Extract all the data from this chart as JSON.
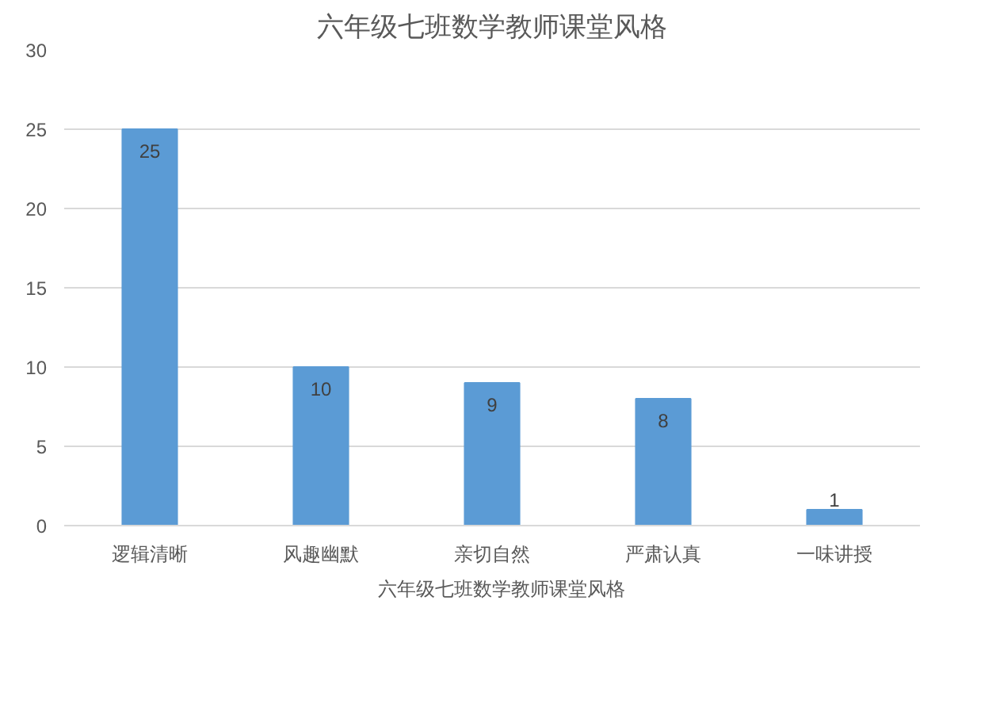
{
  "chart_data": {
    "type": "bar",
    "title": "六年级七班数学教师课堂风格",
    "categories": [
      "逻辑清晰",
      "风趣幽默",
      "亲切自然",
      "严肃认真",
      "一味讲授"
    ],
    "series": [
      {
        "name": "六年级七班数学教师课堂风格",
        "color": "#5b9bd5",
        "values": [
          25,
          10,
          9,
          8,
          1
        ]
      }
    ],
    "ylim": [
      0,
      30
    ],
    "yticks": [
      0,
      5,
      10,
      15,
      20,
      25,
      30
    ],
    "grid": "y",
    "legend": "bottom",
    "data_labels": true
  }
}
